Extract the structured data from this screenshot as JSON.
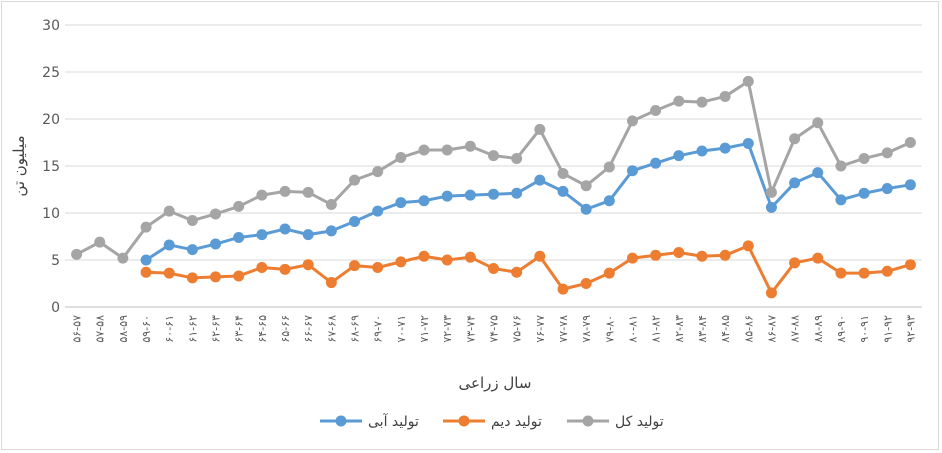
{
  "chart_data": {
    "type": "line",
    "title": "",
    "xlabel": "سال زراعی",
    "ylabel": "میلیون تن",
    "ylim": [
      0,
      30
    ],
    "yticks": [
      0,
      5,
      10,
      15,
      20,
      25,
      30
    ],
    "grid": true,
    "legend_position": "bottom",
    "categories": [
      "۵۶-۵۷",
      "۵۷-۵۸",
      "۵۸-۵۹",
      "۵۹-۶۰",
      "۶۰-۶۱",
      "۶۱-۶۲",
      "۶۲-۶۳",
      "۶۳-۶۴",
      "۶۴-۶۵",
      "۶۵-۶۶",
      "۶۶-۶۷",
      "۶۷-۶۸",
      "۶۸-۶۹",
      "۶۹-۷۰",
      "۷۰-۷۱",
      "۷۱-۷۲",
      "۷۲-۷۳",
      "۷۳-۷۴",
      "۷۴-۷۵",
      "۷۵-۷۶",
      "۷۶-۷۷",
      "۷۷-۷۸",
      "۷۸-۷۹",
      "۷۹-۸۰",
      "۸۰-۸۱",
      "۸۱-۸۲",
      "۸۲-۸۳",
      "۸۳-۸۴",
      "۸۴-۸۵",
      "۸۵-۸۶",
      "۸۶-۸۷",
      "۸۷-۸۸",
      "۸۸-۸۹",
      "۸۹-۹۰",
      "۹۰-۹۱",
      "۹۱-۹۲",
      "۹۲-۹۳"
    ],
    "series": [
      {
        "name": "تولید آبی",
        "color": "#5B9BD5",
        "values": [
          null,
          null,
          null,
          5.0,
          6.6,
          6.1,
          6.7,
          7.4,
          7.7,
          8.3,
          7.7,
          8.1,
          9.1,
          10.2,
          11.1,
          11.3,
          11.8,
          11.9,
          12.0,
          12.1,
          13.5,
          12.3,
          10.4,
          11.3,
          14.5,
          15.3,
          16.1,
          16.6,
          16.9,
          17.4,
          10.6,
          13.2,
          14.3,
          11.4,
          12.1,
          12.6,
          13.0
        ]
      },
      {
        "name": "تولید دیم",
        "color": "#ED7D31",
        "values": [
          null,
          null,
          null,
          3.7,
          3.6,
          3.1,
          3.2,
          3.3,
          4.2,
          4.0,
          4.5,
          2.6,
          4.4,
          4.2,
          4.8,
          5.4,
          5.0,
          5.3,
          4.1,
          3.7,
          5.4,
          1.9,
          2.5,
          3.6,
          5.2,
          5.5,
          5.8,
          5.4,
          5.5,
          6.5,
          1.5,
          4.7,
          5.2,
          3.6,
          3.6,
          3.8,
          4.5
        ]
      },
      {
        "name": "تولید کل",
        "color": "#A5A5A5",
        "values": [
          5.6,
          6.9,
          5.2,
          8.5,
          10.2,
          9.2,
          9.9,
          10.7,
          11.9,
          12.3,
          12.2,
          10.9,
          13.5,
          14.4,
          15.9,
          16.7,
          16.7,
          17.1,
          16.1,
          15.8,
          18.9,
          14.2,
          12.9,
          14.9,
          19.8,
          20.9,
          21.9,
          21.8,
          22.4,
          24.0,
          12.2,
          17.9,
          19.6,
          15.0,
          15.8,
          16.4,
          17.5
        ]
      }
    ]
  }
}
